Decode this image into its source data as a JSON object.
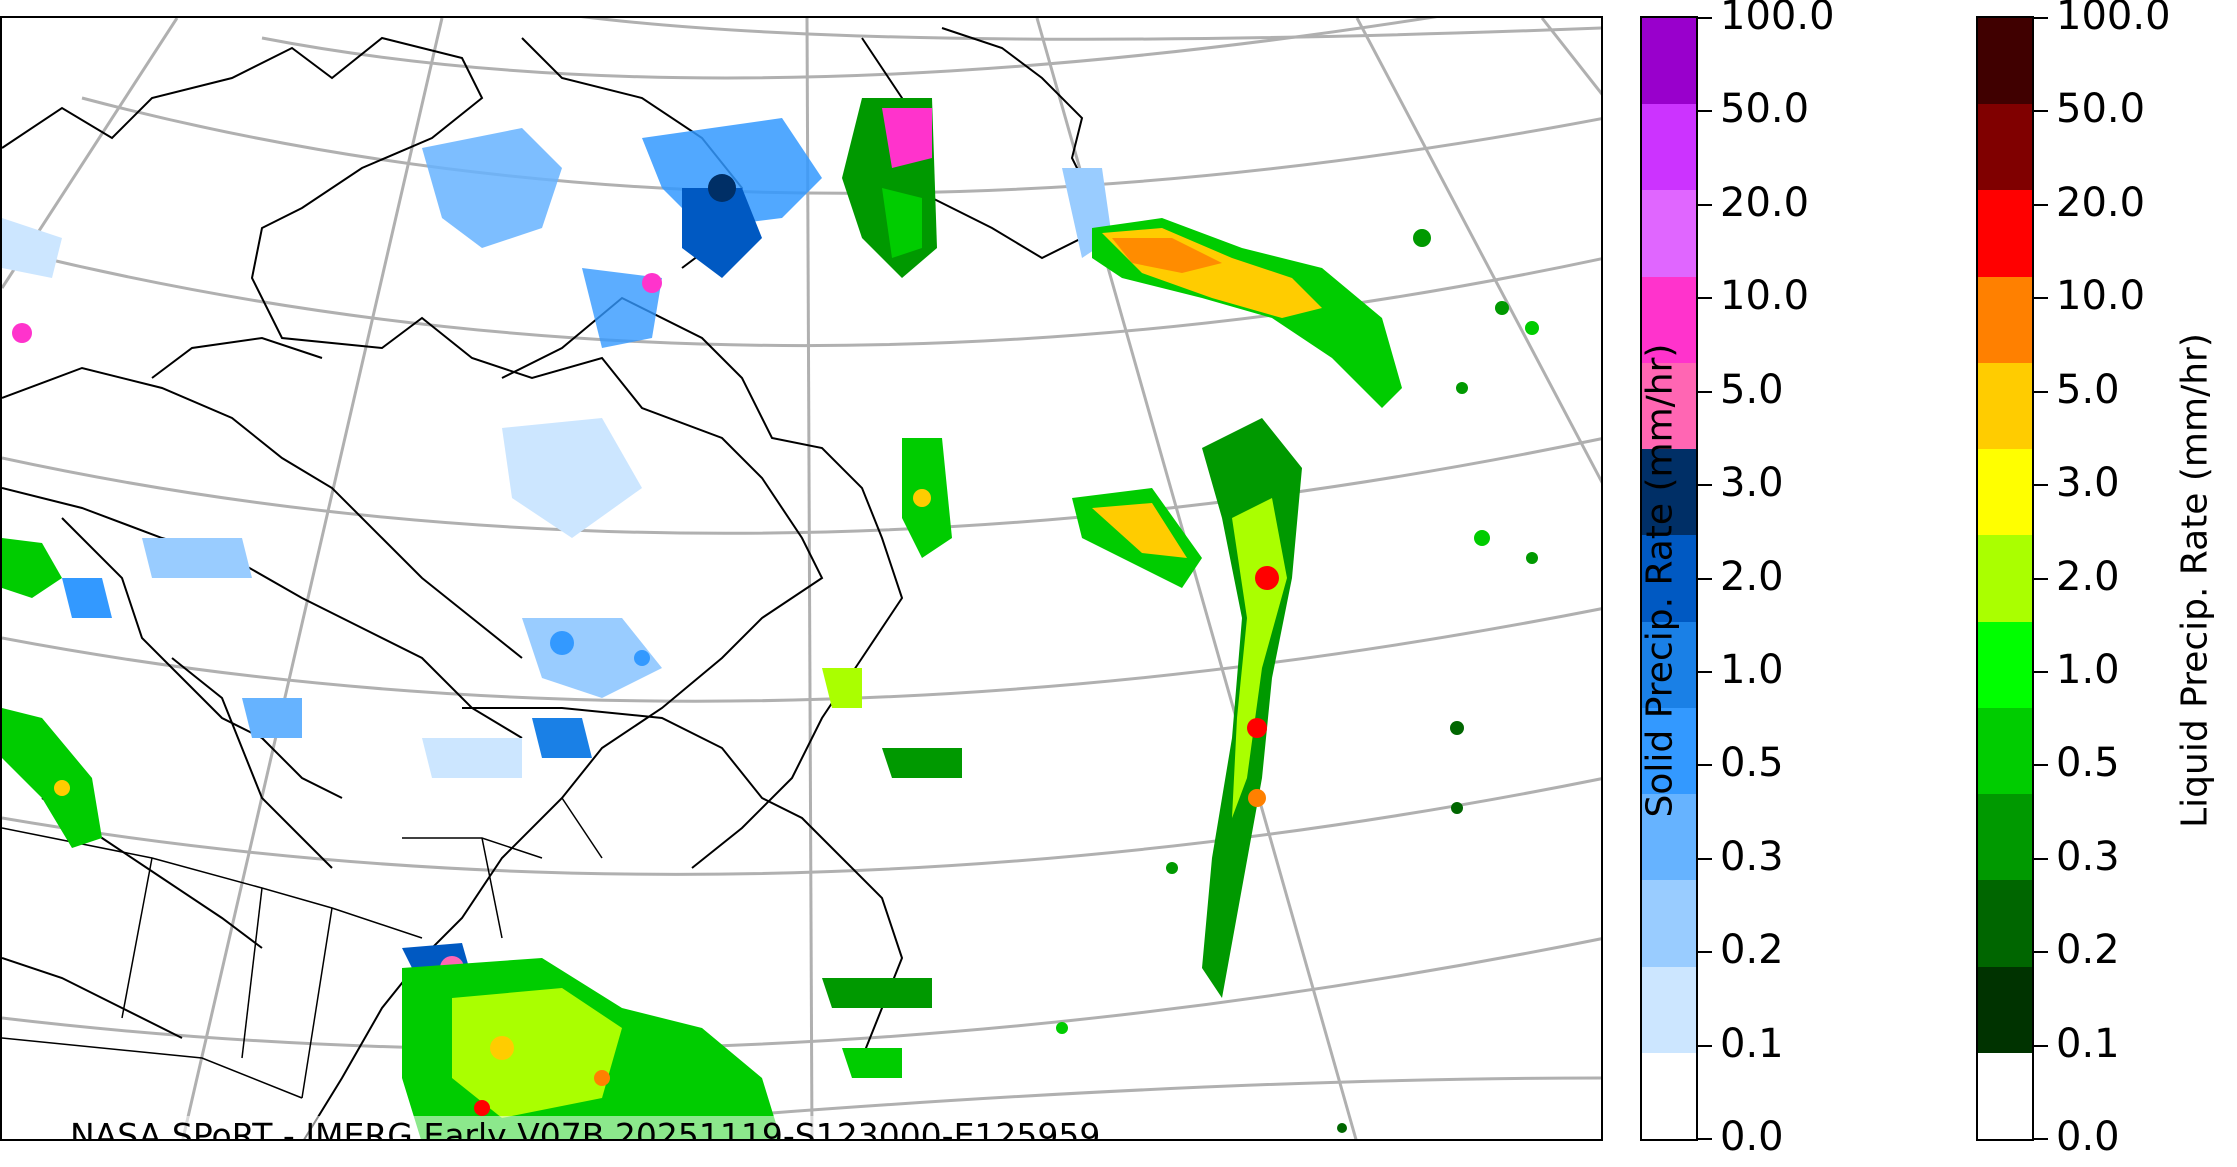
{
  "credit": "NASA SPoRT - IMERG Early V07B 20251119-S123000-E125959",
  "solid_colorbar": {
    "label": "Solid Precip. Rate (mm/hr)",
    "ticks": [
      "0.0",
      "0.1",
      "0.2",
      "0.3",
      "0.5",
      "1.0",
      "2.0",
      "3.0",
      "5.0",
      "10.0",
      "20.0",
      "50.0",
      "100.0"
    ],
    "colors": [
      "#ffffff",
      "#cce6ff",
      "#99ccff",
      "#66b3ff",
      "#3399ff",
      "#1a80e6",
      "#0059c2",
      "#002f66",
      "#ff66b3",
      "#ff33cc",
      "#e066ff",
      "#cc33ff",
      "#9900cc"
    ]
  },
  "liquid_colorbar": {
    "label": "Liquid Precip. Rate (mm/hr)",
    "ticks": [
      "0.0",
      "0.1",
      "0.2",
      "0.3",
      "0.5",
      "1.0",
      "2.0",
      "3.0",
      "5.0",
      "10.0",
      "20.0",
      "50.0",
      "100.0"
    ],
    "colors": [
      "#ffffff",
      "#003300",
      "#006600",
      "#009900",
      "#00cc00",
      "#00ff00",
      "#aaff00",
      "#ffff00",
      "#ffcc00",
      "#ff8000",
      "#ff0000",
      "#800000",
      "#400000"
    ]
  },
  "colors": {
    "gridline": "#b0b0b0",
    "coastline": "#000000"
  }
}
